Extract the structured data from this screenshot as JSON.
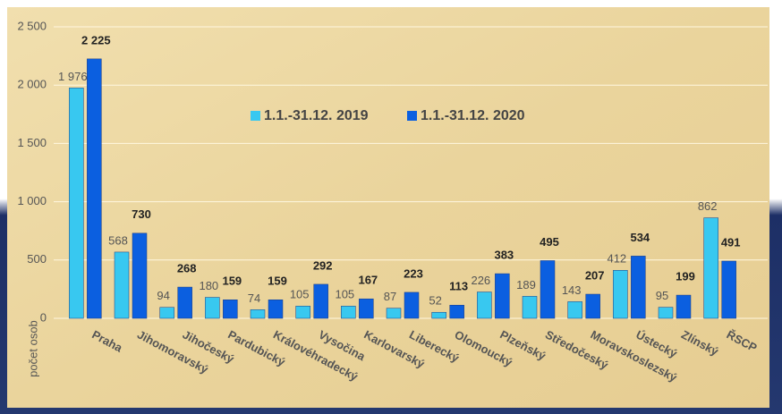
{
  "chart_data": {
    "type": "bar",
    "y_label": "počet osob",
    "categories": [
      "Praha",
      "Jihomoravský",
      "Jihočeský",
      "Pardubický",
      "Královéhradecký",
      "Vysočina",
      "Karlovarský",
      "Liberecký",
      "Olomoucký",
      "Plzeňský",
      "Středočeský",
      "Moravskoslezský",
      "Ústecký",
      "Zlínský",
      "ŘSCP"
    ],
    "series": [
      {
        "name": "1.1.-31.12. 2019",
        "color": "#38c8f0",
        "values": [
          1976,
          568,
          94,
          180,
          74,
          105,
          105,
          87,
          52,
          226,
          189,
          143,
          412,
          95,
          862
        ],
        "value_labels": [
          "1 976",
          "568",
          "94",
          "180",
          "74",
          "105",
          "105",
          "87",
          "52",
          "226",
          "189",
          "143",
          "412",
          "95",
          "862"
        ]
      },
      {
        "name": "1.1.-31.12. 2020",
        "color": "#0b5fe0",
        "values": [
          2225,
          730,
          268,
          159,
          159,
          292,
          167,
          223,
          113,
          383,
          495,
          207,
          534,
          199,
          491
        ],
        "value_labels": [
          "2 225",
          "730",
          "268",
          "159",
          "159",
          "292",
          "167",
          "223",
          "113",
          "383",
          "495",
          "207",
          "534",
          "199",
          "491"
        ]
      }
    ],
    "ylim": [
      0,
      2500
    ],
    "yticks": [
      0,
      500,
      {
        "value": 1000,
        "label": "1 000"
      },
      {
        "value": 1500,
        "label": "1 500"
      },
      {
        "value": 2000,
        "label": "2 000"
      },
      {
        "value": 2500,
        "label": "2 500"
      }
    ],
    "grid": true
  }
}
